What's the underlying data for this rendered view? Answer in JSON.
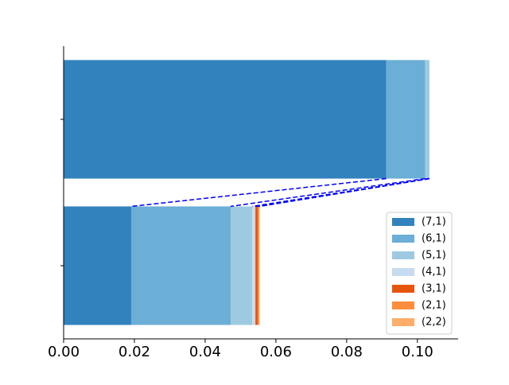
{
  "chart_data": {
    "type": "barh_stacked",
    "categories": [
      null,
      null
    ],
    "series": [
      {
        "name": "(7,1)",
        "color": "#3182bd",
        "values": [
          0.0191,
          0.0912
        ]
      },
      {
        "name": "(6,1)",
        "color": "#6baed6",
        "values": [
          0.0281,
          0.011
        ]
      },
      {
        "name": "(5,1)",
        "color": "#9ecae1",
        "values": [
          0.0061,
          0.0012
        ]
      },
      {
        "name": "(4,1)",
        "color": "#c6dbef",
        "values": [
          0.0009,
          0
        ]
      },
      {
        "name": "(3,1)",
        "color": "#e6550d",
        "values": [
          0.0007,
          0
        ]
      },
      {
        "name": "(2,1)",
        "color": "#fd8d3c",
        "values": [
          0.0004,
          0
        ]
      },
      {
        "name": "(2,2)",
        "color": "#fdae6b",
        "values": [
          0.0001,
          0
        ]
      }
    ],
    "xlim": [
      0,
      0.1115
    ],
    "xticks": [
      {
        "value": 0,
        "label": "0.00"
      },
      {
        "value": 0.02,
        "label": "0.02"
      },
      {
        "value": 0.04,
        "label": "0.04"
      },
      {
        "value": 0.06,
        "label": "0.06"
      },
      {
        "value": 0.08,
        "label": "0.08"
      },
      {
        "value": 0.1,
        "label": "0.10"
      }
    ],
    "connector_color": "#0000ff",
    "legend": "lower right"
  }
}
